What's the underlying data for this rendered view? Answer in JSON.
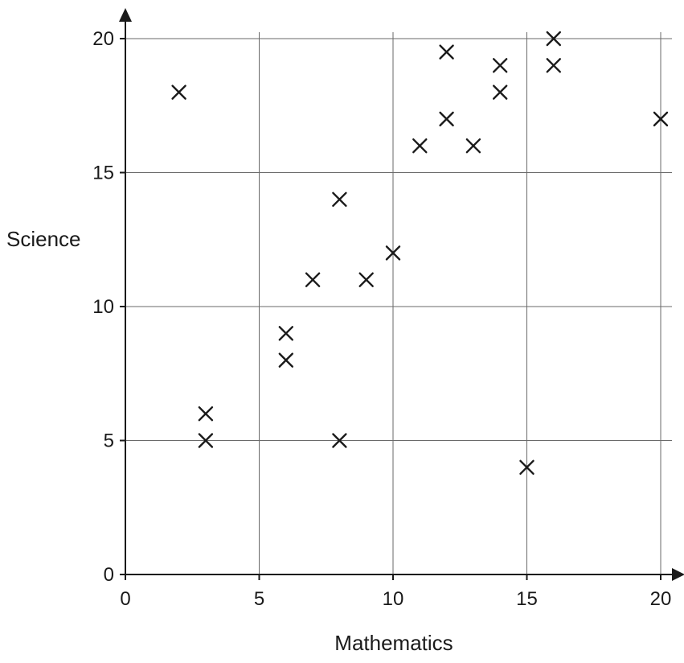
{
  "chart_data": {
    "type": "scatter",
    "title": "",
    "xlabel": "Mathematics",
    "ylabel": "Science",
    "xlim": [
      0,
      20
    ],
    "ylim": [
      0,
      20
    ],
    "xticks": [
      "0",
      "5",
      "10",
      "15",
      "20"
    ],
    "yticks": [
      "0",
      "5",
      "10",
      "15",
      "20"
    ],
    "grid": true,
    "marker": "x",
    "points": [
      {
        "x": 2,
        "y": 18
      },
      {
        "x": 3,
        "y": 6
      },
      {
        "x": 3,
        "y": 5
      },
      {
        "x": 6,
        "y": 9
      },
      {
        "x": 6,
        "y": 8
      },
      {
        "x": 7,
        "y": 11
      },
      {
        "x": 8,
        "y": 14
      },
      {
        "x": 8,
        "y": 5
      },
      {
        "x": 9,
        "y": 11
      },
      {
        "x": 10,
        "y": 12
      },
      {
        "x": 11,
        "y": 16
      },
      {
        "x": 12,
        "y": 19.5
      },
      {
        "x": 12,
        "y": 17
      },
      {
        "x": 13,
        "y": 16
      },
      {
        "x": 14,
        "y": 19
      },
      {
        "x": 14,
        "y": 18
      },
      {
        "x": 15,
        "y": 4
      },
      {
        "x": 16,
        "y": 20
      },
      {
        "x": 16,
        "y": 19
      },
      {
        "x": 20,
        "y": 17
      }
    ]
  }
}
